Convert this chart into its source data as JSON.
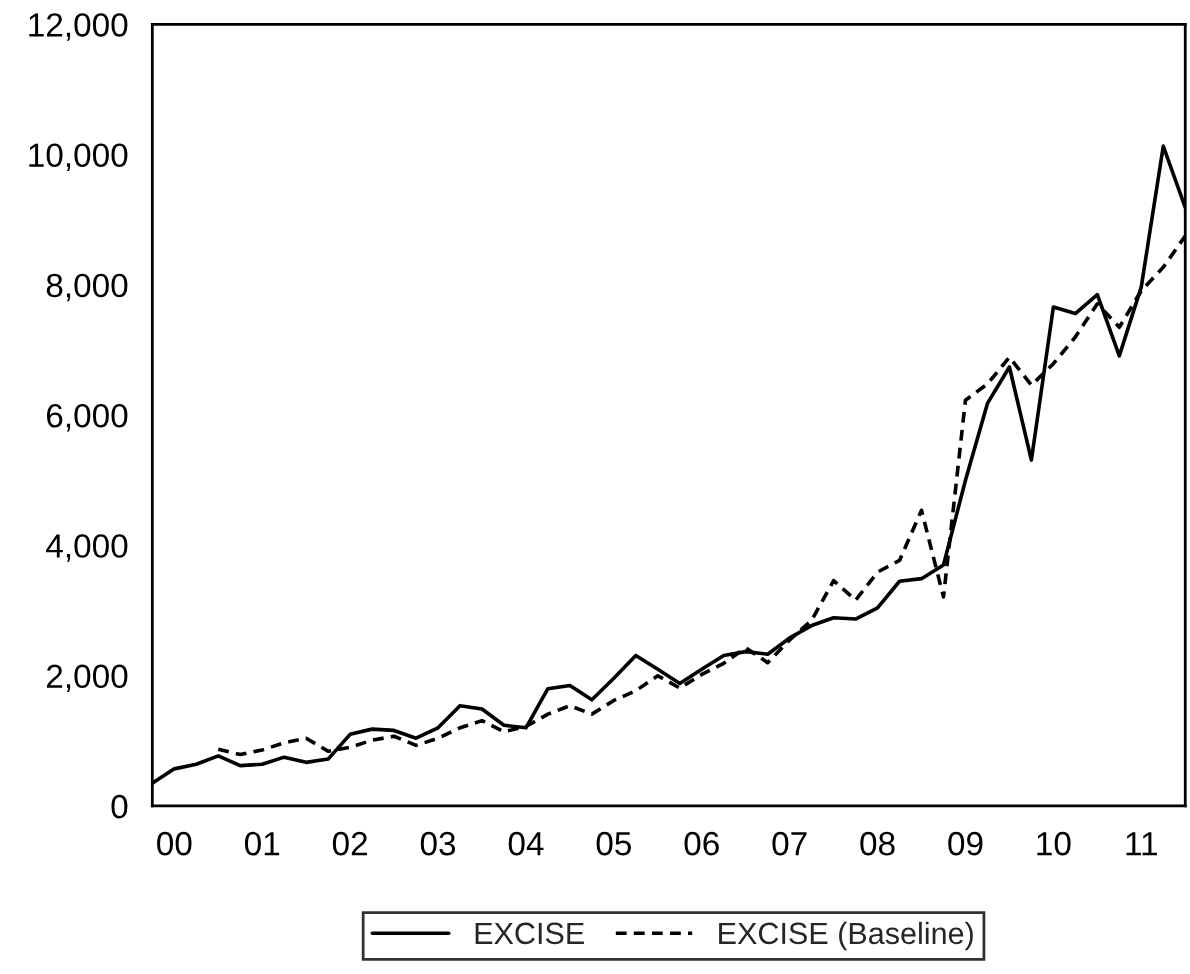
{
  "chart_data": {
    "type": "line",
    "categories": [
      null,
      "00",
      null,
      null,
      null,
      "01",
      null,
      null,
      null,
      "02",
      null,
      null,
      null,
      "03",
      null,
      null,
      null,
      "04",
      null,
      null,
      null,
      "05",
      null,
      null,
      null,
      "06",
      null,
      null,
      null,
      "07",
      null,
      null,
      null,
      "08",
      null,
      null,
      null,
      "09",
      null,
      null,
      null,
      "10",
      null,
      null,
      null,
      "11",
      null,
      null
    ],
    "series": [
      {
        "name": "EXCISE",
        "color": "#000000",
        "line_style": "solid",
        "values": [
          350,
          570,
          640,
          770,
          620,
          640,
          750,
          670,
          720,
          1100,
          1180,
          1160,
          1040,
          1200,
          1540,
          1490,
          1240,
          1200,
          1800,
          1850,
          1630,
          1960,
          2310,
          2100,
          1880,
          2100,
          2310,
          2370,
          2330,
          2580,
          2770,
          2890,
          2870,
          3040,
          3450,
          3490,
          3700,
          5000,
          6180,
          6740,
          5310,
          7660,
          7560,
          7850,
          6910,
          7970,
          10130,
          9190
        ]
      },
      {
        "name": "EXCISE (Baseline)",
        "color": "#000000",
        "line_style": "dashed",
        "values": [
          null,
          null,
          null,
          870,
          790,
          860,
          970,
          1040,
          840,
          900,
          1010,
          1070,
          930,
          1040,
          1200,
          1310,
          1140,
          1220,
          1410,
          1540,
          1410,
          1620,
          1770,
          2000,
          1810,
          2020,
          2190,
          2430,
          2200,
          2550,
          2850,
          3460,
          3160,
          3590,
          3770,
          4540,
          3210,
          6230,
          6480,
          6890,
          6460,
          6790,
          7200,
          7710,
          7350,
          7910,
          8270,
          8750
        ]
      }
    ],
    "ylim": [
      0,
      12000
    ],
    "yticks": [
      {
        "value": 0,
        "label": "0"
      },
      {
        "value": 2000,
        "label": "2,000"
      },
      {
        "value": 4000,
        "label": "4,000"
      },
      {
        "value": 6000,
        "label": "6,000"
      },
      {
        "value": 8000,
        "label": "8,000"
      },
      {
        "value": 10000,
        "label": "10,000"
      },
      {
        "value": 12000,
        "label": "12,000"
      }
    ],
    "grid": false,
    "legend": "bottom",
    "marker": "none"
  }
}
